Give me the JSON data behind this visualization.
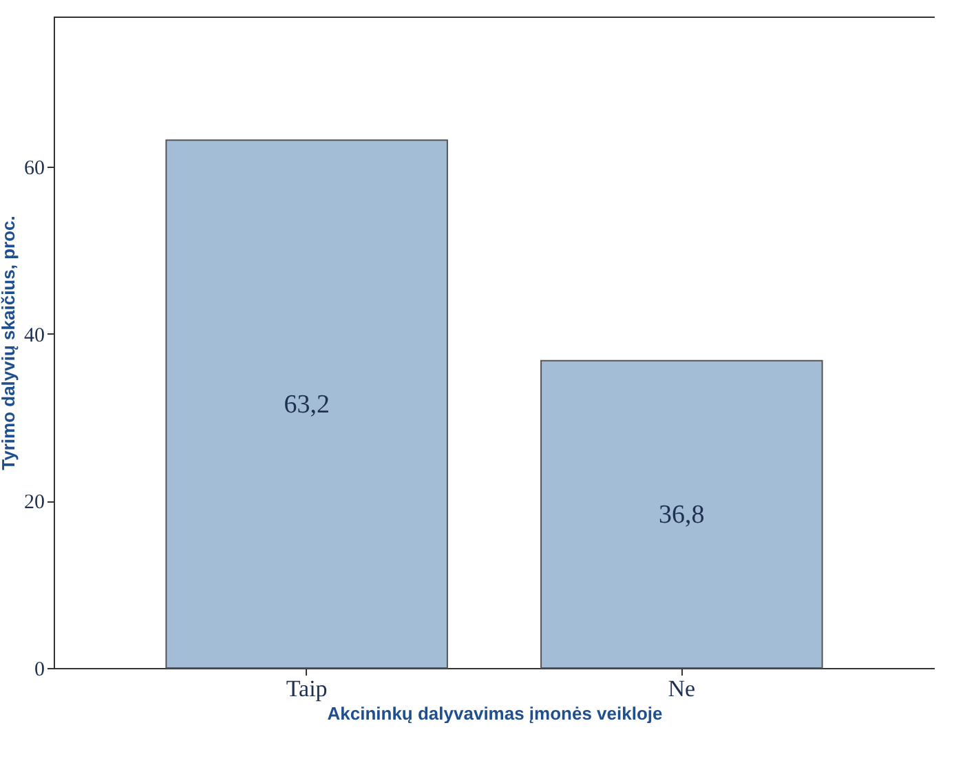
{
  "chart_data": {
    "type": "bar",
    "xlabel": "Akcininkų dalyvavimas įmonės veikloje",
    "ylabel": "Tyrimo dalyvių skaičius, proc.",
    "categories": [
      "Taip",
      "Ne"
    ],
    "values": [
      63.2,
      36.8
    ],
    "value_labels": [
      "63,2",
      "36,8"
    ],
    "color": "#a4bdd6",
    "ylim": [
      0,
      78
    ],
    "yticks": [
      0,
      20,
      40,
      60
    ],
    "grid": false
  }
}
